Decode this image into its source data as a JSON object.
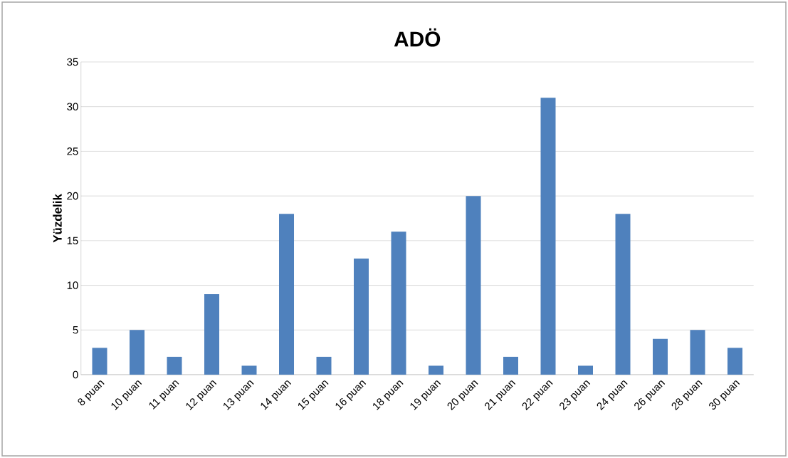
{
  "chart_data": {
    "type": "bar",
    "title": "ADÖ",
    "ylabel": "Yüzdelik",
    "categories": [
      "8 puan",
      "10 puan",
      "11 puan",
      "12 puan",
      "13 puan",
      "14 puan",
      "15 puan",
      "16 puan",
      "18 puan",
      "19 puan",
      "20 puan",
      "21 puan",
      "22 puan",
      "23 puan",
      "24 puan",
      "26 puan",
      "28 puan",
      "30 puan"
    ],
    "values": [
      3,
      5,
      2,
      9,
      1,
      18,
      2,
      13,
      16,
      1,
      20,
      2,
      31,
      1,
      18,
      4,
      5,
      3
    ],
    "color": "#4f81bd",
    "ylim": [
      0,
      35
    ],
    "yticks": [
      0,
      5,
      10,
      15,
      20,
      25,
      30,
      35
    ],
    "grid": "y"
  }
}
